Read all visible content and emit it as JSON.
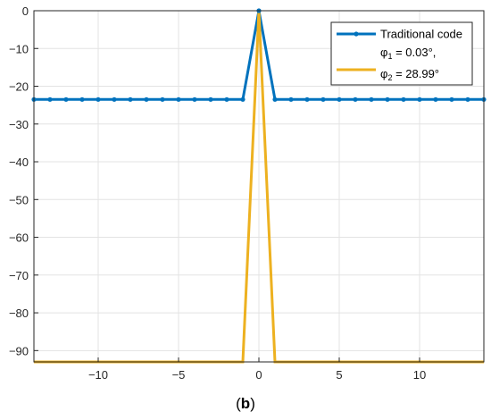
{
  "caption_letter": "b",
  "chart_data": {
    "type": "line",
    "title": "",
    "xlabel": "",
    "ylabel": "",
    "xlim": [
      -14,
      14
    ],
    "ylim": [
      -93,
      0
    ],
    "grid": true,
    "legend_position": "top-right",
    "x_ticks": [
      -10,
      -5,
      0,
      5,
      10
    ],
    "x_tick_labels": [
      "−10",
      "−5",
      "0",
      "5",
      "10"
    ],
    "y_ticks": [
      0,
      -10,
      -20,
      -30,
      -40,
      -50,
      -60,
      -70,
      -80,
      -90
    ],
    "y_tick_labels": [
      "0",
      "−10",
      "−20",
      "−30",
      "−40",
      "−50",
      "−60",
      "−70",
      "−80",
      "−90"
    ],
    "series": [
      {
        "name": "Traditional code",
        "color": "#0072BD",
        "marker": "dot",
        "x": [
          -14,
          -13,
          -12,
          -11,
          -10,
          -9,
          -8,
          -7,
          -6,
          -5,
          -4,
          -3,
          -2,
          -1,
          0,
          1,
          2,
          3,
          4,
          5,
          6,
          7,
          8,
          9,
          10,
          11,
          12,
          13,
          14
        ],
        "y": [
          -23.5,
          -23.5,
          -23.5,
          -23.5,
          -23.5,
          -23.5,
          -23.5,
          -23.5,
          -23.5,
          -23.5,
          -23.5,
          -23.5,
          -23.5,
          -23.5,
          0,
          -23.5,
          -23.5,
          -23.5,
          -23.5,
          -23.5,
          -23.5,
          -23.5,
          -23.5,
          -23.5,
          -23.5,
          -23.5,
          -23.5,
          -23.5,
          -23.5
        ]
      },
      {
        "name_line1": "φ",
        "name_line1_sub": "1",
        "name_line1_rest": " = 0.03°,",
        "name_line2": "φ",
        "name_line2_sub": "2",
        "name_line2_rest": " = 28.99°",
        "color": "#EDB120",
        "marker": "none",
        "x": [
          -14,
          -1,
          0,
          1,
          14
        ],
        "y": [
          -93,
          -93,
          0,
          -93,
          -93
        ]
      }
    ]
  }
}
